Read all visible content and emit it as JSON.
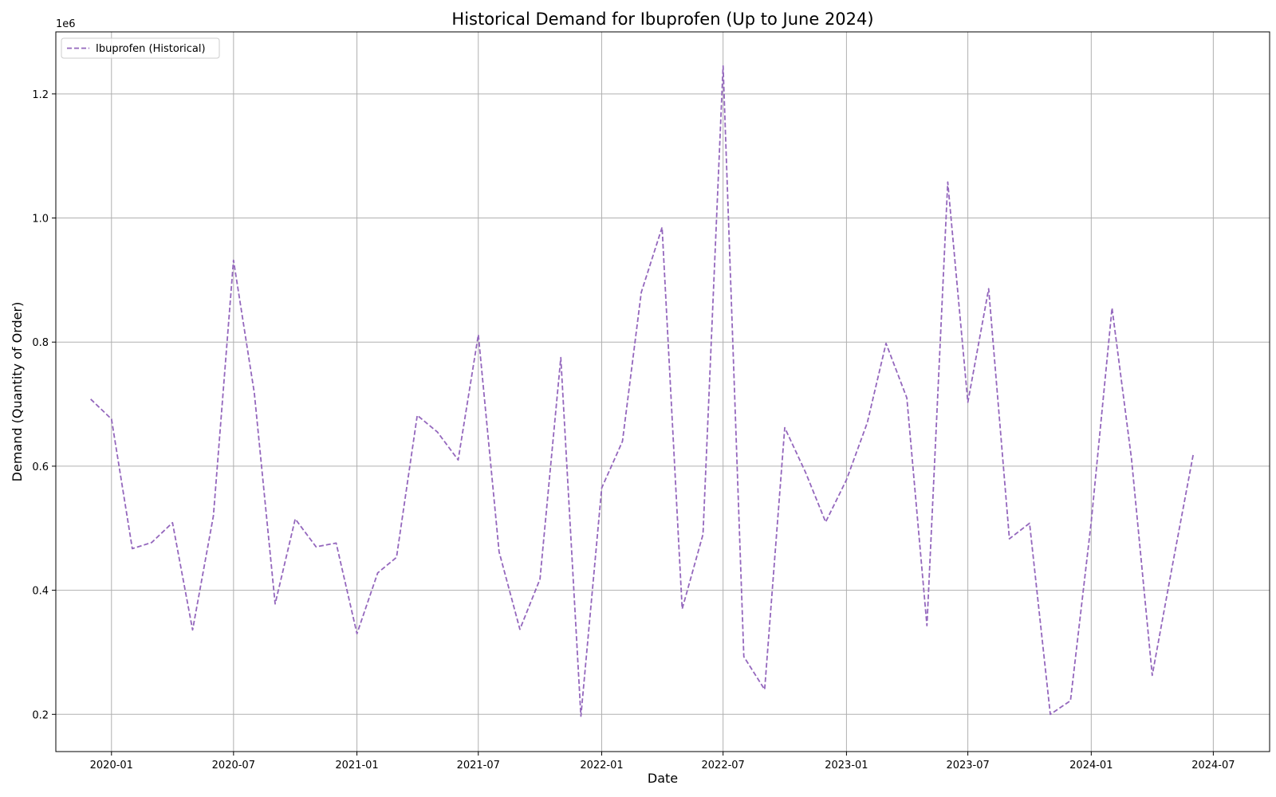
{
  "chart_data": {
    "type": "line",
    "title": "Historical Demand for Ibuprofen (Up to June 2024)",
    "xlabel": "Date",
    "ylabel": "Demand (Quantity of Order)",
    "y_multiplier_label": "1e6",
    "ylim": [
      140000,
      1300000
    ],
    "xlim": [
      "2019-10-10",
      "2024-09-23"
    ],
    "grid": true,
    "legend_position": "top-left",
    "x_ticks": [
      "2020-01",
      "2020-07",
      "2021-01",
      "2021-07",
      "2022-01",
      "2022-07",
      "2023-01",
      "2023-07",
      "2024-01",
      "2024-07"
    ],
    "y_ticks": [
      {
        "value": 200000,
        "label": "0.2"
      },
      {
        "value": 400000,
        "label": "0.4"
      },
      {
        "value": 600000,
        "label": "0.6"
      },
      {
        "value": 800000,
        "label": "0.8"
      },
      {
        "value": 1000000,
        "label": "1.0"
      },
      {
        "value": 1200000,
        "label": "1.2"
      }
    ],
    "series": [
      {
        "name": "Ibuprofen (Historical)",
        "color": "#9467bd",
        "style": "dashed",
        "x": [
          "2019-12-01",
          "2020-01-01",
          "2020-02-01",
          "2020-03-01",
          "2020-04-01",
          "2020-05-01",
          "2020-06-01",
          "2020-07-01",
          "2020-08-01",
          "2020-09-01",
          "2020-10-01",
          "2020-11-01",
          "2020-12-01",
          "2021-01-01",
          "2021-02-01",
          "2021-03-01",
          "2021-04-01",
          "2021-05-01",
          "2021-06-01",
          "2021-07-01",
          "2021-08-01",
          "2021-09-01",
          "2021-10-01",
          "2021-11-01",
          "2021-12-01",
          "2022-01-01",
          "2022-02-01",
          "2022-03-01",
          "2022-04-01",
          "2022-05-01",
          "2022-06-01",
          "2022-07-01",
          "2022-08-01",
          "2022-09-01",
          "2022-10-01",
          "2022-11-01",
          "2022-12-01",
          "2023-01-01",
          "2023-02-01",
          "2023-03-01",
          "2023-04-01",
          "2023-05-01",
          "2023-06-01",
          "2023-07-01",
          "2023-08-01",
          "2023-09-01",
          "2023-10-01",
          "2023-11-01",
          "2023-12-01",
          "2024-01-01",
          "2024-02-01",
          "2024-03-01",
          "2024-04-01",
          "2024-05-01",
          "2024-06-01"
        ],
        "y": [
          708000,
          676000,
          467000,
          477000,
          509000,
          336000,
          520000,
          932000,
          718000,
          378000,
          515000,
          470000,
          476000,
          330000,
          428000,
          453000,
          682000,
          655000,
          610000,
          812000,
          462000,
          337000,
          418000,
          775000,
          197000,
          565000,
          640000,
          880000,
          985000,
          370000,
          490000,
          1245000,
          293000,
          240000,
          662000,
          590000,
          510000,
          578000,
          670000,
          798000,
          710000,
          343000,
          1058000,
          703000,
          886000,
          483000,
          508000,
          200000,
          222000,
          510000,
          855000,
          612000,
          263000,
          440000,
          618000
        ]
      }
    ]
  }
}
